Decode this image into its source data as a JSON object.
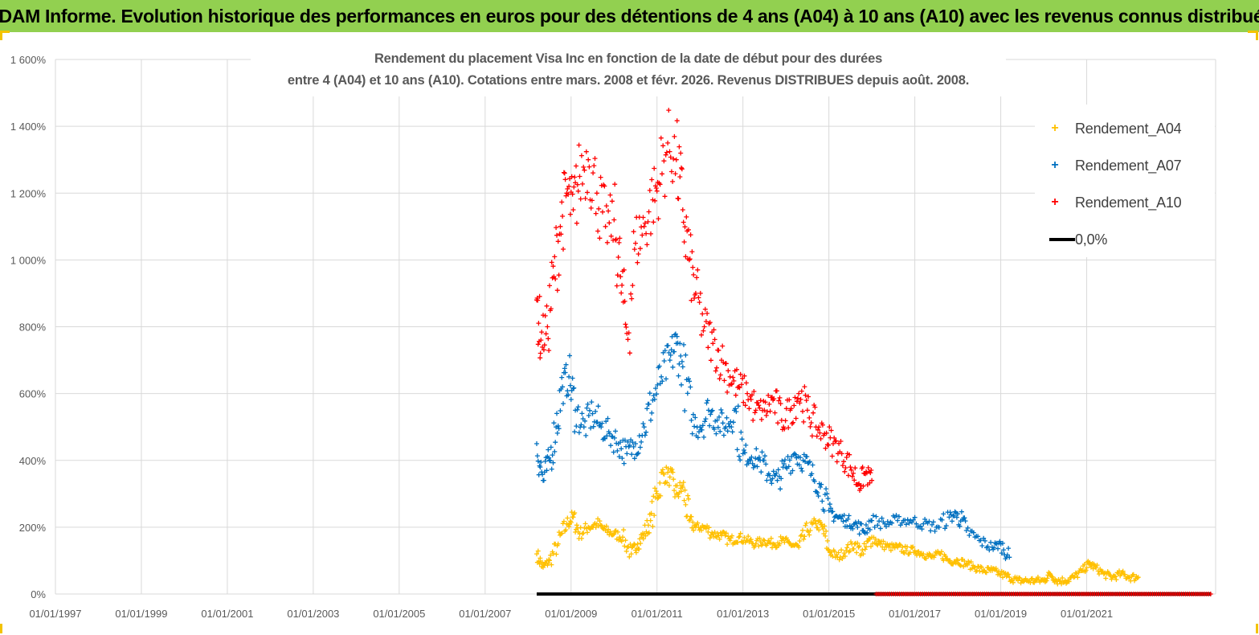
{
  "banner": {
    "title": "ADAM Informe. Evolution historique des performances en euros pour des détentions de 4 ans (A04) à 10 ans (A10) avec les revenus connus distribués"
  },
  "colors": {
    "banner_bg": "#92d050",
    "A04": "#ffc000",
    "A07": "#0070c0",
    "A10": "#ff0000",
    "zero": "#000000",
    "axis_text": "#595959",
    "grid": "#d9d9d9"
  },
  "chart_data": {
    "type": "scatter",
    "title_lines": [
      "Rendement du placement Visa Inc en fonction de la date de début pour des durées",
      "entre 4 (A04) et 10 ans (A10). Cotations entre mars. 2008 et févr. 2026. Revenus DISTRIBUES depuis août. 2008."
    ],
    "x_axis": {
      "type": "date",
      "range": [
        "1997-01-01",
        "2023-12-31"
      ],
      "tick_labels": [
        "01/01/1997",
        "01/01/1999",
        "01/01/2001",
        "01/01/2003",
        "01/01/2005",
        "01/01/2007",
        "01/01/2009",
        "01/01/2011",
        "01/01/2013",
        "01/01/2015",
        "01/01/2017",
        "01/01/2019",
        "01/01/2021"
      ],
      "tick_years": [
        1997,
        1999,
        2001,
        2003,
        2005,
        2007,
        2009,
        2011,
        2013,
        2015,
        2017,
        2019,
        2021
      ]
    },
    "y_axis": {
      "range": [
        0,
        16
      ],
      "unit": "ratio (1 = 100%)",
      "tick_labels": [
        "0%",
        "200%",
        "400%",
        "600%",
        "800%",
        "1 000%",
        "1 200%",
        "1 400%",
        "1 600%"
      ],
      "tick_values": [
        0,
        2,
        4,
        6,
        8,
        10,
        12,
        14,
        16
      ]
    },
    "grid": "vertical and horizontal major gridlines",
    "legend": {
      "position": "top-right",
      "entries": [
        "Rendement_A04",
        "Rendement_A07",
        "Rendement_A10",
        "0,0%"
      ]
    },
    "series": [
      {
        "name": "Rendement_A04",
        "marker": "+",
        "color": "#ffc000",
        "points": [
          [
            2008.2,
            1.2
          ],
          [
            2008.35,
            0.8
          ],
          [
            2008.5,
            1.0
          ],
          [
            2008.7,
            1.5
          ],
          [
            2008.9,
            2.1
          ],
          [
            2009.05,
            2.3
          ],
          [
            2009.2,
            1.8
          ],
          [
            2009.4,
            2.0
          ],
          [
            2009.6,
            2.1
          ],
          [
            2009.8,
            1.9
          ],
          [
            2010.0,
            1.8
          ],
          [
            2010.2,
            1.7
          ],
          [
            2010.4,
            1.2
          ],
          [
            2010.55,
            1.5
          ],
          [
            2010.7,
            1.8
          ],
          [
            2010.85,
            2.2
          ],
          [
            2011.0,
            3.0
          ],
          [
            2011.15,
            3.6
          ],
          [
            2011.3,
            3.5
          ],
          [
            2011.45,
            3.0
          ],
          [
            2011.6,
            3.2
          ],
          [
            2011.75,
            2.2
          ],
          [
            2011.9,
            2.0
          ],
          [
            2012.1,
            2.0
          ],
          [
            2012.3,
            1.8
          ],
          [
            2012.5,
            1.75
          ],
          [
            2012.7,
            1.6
          ],
          [
            2012.9,
            1.7
          ],
          [
            2013.1,
            1.6
          ],
          [
            2013.3,
            1.5
          ],
          [
            2013.5,
            1.6
          ],
          [
            2013.7,
            1.5
          ],
          [
            2013.9,
            1.6
          ],
          [
            2014.1,
            1.5
          ],
          [
            2014.3,
            1.4
          ],
          [
            2014.5,
            1.9
          ],
          [
            2014.7,
            2.1
          ],
          [
            2014.85,
            2.0
          ],
          [
            2015.0,
            1.3
          ],
          [
            2015.2,
            1.1
          ],
          [
            2015.4,
            1.3
          ],
          [
            2015.6,
            1.5
          ],
          [
            2015.8,
            1.2
          ],
          [
            2016.0,
            1.7
          ],
          [
            2016.2,
            1.5
          ],
          [
            2016.4,
            1.4
          ],
          [
            2016.6,
            1.4
          ],
          [
            2016.8,
            1.3
          ],
          [
            2017.0,
            1.3
          ],
          [
            2017.2,
            1.2
          ],
          [
            2017.4,
            1.1
          ],
          [
            2017.6,
            1.2
          ],
          [
            2017.8,
            1.0
          ],
          [
            2018.0,
            1.0
          ],
          [
            2018.2,
            0.9
          ],
          [
            2018.4,
            0.8
          ],
          [
            2018.6,
            0.7
          ],
          [
            2018.8,
            0.7
          ],
          [
            2019.0,
            0.6
          ],
          [
            2019.2,
            0.5
          ],
          [
            2019.4,
            0.4
          ],
          [
            2019.6,
            0.4
          ],
          [
            2019.8,
            0.4
          ],
          [
            2020.0,
            0.4
          ],
          [
            2020.15,
            0.6
          ],
          [
            2020.3,
            0.4
          ],
          [
            2020.5,
            0.4
          ],
          [
            2020.7,
            0.5
          ],
          [
            2020.9,
            0.7
          ],
          [
            2021.05,
            0.9
          ],
          [
            2021.2,
            0.8
          ],
          [
            2021.4,
            0.6
          ],
          [
            2021.6,
            0.5
          ],
          [
            2021.8,
            0.6
          ],
          [
            2022.0,
            0.5
          ],
          [
            2022.2,
            0.5
          ]
        ]
      },
      {
        "name": "Rendement_A07",
        "marker": "+",
        "color": "#0070c0",
        "points": [
          [
            2008.2,
            4.5
          ],
          [
            2008.35,
            3.4
          ],
          [
            2008.5,
            4.0
          ],
          [
            2008.65,
            5.0
          ],
          [
            2008.8,
            6.2
          ],
          [
            2008.95,
            6.5
          ],
          [
            2009.1,
            5.5
          ],
          [
            2009.3,
            5.0
          ],
          [
            2009.5,
            5.4
          ],
          [
            2009.7,
            5.0
          ],
          [
            2009.9,
            4.8
          ],
          [
            2010.1,
            4.5
          ],
          [
            2010.3,
            4.2
          ],
          [
            2010.5,
            4.5
          ],
          [
            2010.7,
            5.0
          ],
          [
            2010.9,
            5.8
          ],
          [
            2011.1,
            6.5
          ],
          [
            2011.3,
            7.0
          ],
          [
            2011.45,
            7.5
          ],
          [
            2011.6,
            6.8
          ],
          [
            2011.8,
            5.2
          ],
          [
            2012.0,
            5.0
          ],
          [
            2012.2,
            5.5
          ],
          [
            2012.4,
            5.2
          ],
          [
            2012.6,
            5.0
          ],
          [
            2012.8,
            5.5
          ],
          [
            2013.0,
            4.2
          ],
          [
            2013.2,
            4.1
          ],
          [
            2013.4,
            4.0
          ],
          [
            2013.6,
            3.6
          ],
          [
            2013.8,
            3.4
          ],
          [
            2014.0,
            3.8
          ],
          [
            2014.2,
            4.2
          ],
          [
            2014.4,
            4.0
          ],
          [
            2014.6,
            3.6
          ],
          [
            2014.8,
            3.2
          ],
          [
            2015.0,
            2.5
          ],
          [
            2015.2,
            2.3
          ],
          [
            2015.4,
            2.2
          ],
          [
            2015.6,
            2.1
          ],
          [
            2015.8,
            1.9
          ],
          [
            2016.0,
            2.2
          ],
          [
            2016.3,
            2.1
          ],
          [
            2016.6,
            2.2
          ],
          [
            2016.9,
            2.2
          ],
          [
            2017.2,
            2.1
          ],
          [
            2017.5,
            2.0
          ],
          [
            2017.8,
            2.3
          ],
          [
            2018.0,
            2.4
          ],
          [
            2018.2,
            1.9
          ],
          [
            2018.5,
            1.6
          ],
          [
            2018.8,
            1.4
          ],
          [
            2019.0,
            1.5
          ],
          [
            2019.2,
            1.1
          ]
        ]
      },
      {
        "name": "Rendement_A10",
        "marker": "+",
        "color": "#ff0000",
        "points": [
          [
            2008.2,
            8.8
          ],
          [
            2008.3,
            7.6
          ],
          [
            2008.45,
            8.0
          ],
          [
            2008.6,
            9.5
          ],
          [
            2008.75,
            11.0
          ],
          [
            2008.9,
            12.0
          ],
          [
            2009.05,
            11.5
          ],
          [
            2009.2,
            12.5
          ],
          [
            2009.4,
            13.0
          ],
          [
            2009.6,
            12.0
          ],
          [
            2009.8,
            11.0
          ],
          [
            2010.0,
            11.2
          ],
          [
            2010.15,
            9.5
          ],
          [
            2010.3,
            7.8
          ],
          [
            2010.5,
            10.5
          ],
          [
            2010.7,
            11.0
          ],
          [
            2010.9,
            11.8
          ],
          [
            2011.05,
            12.3
          ],
          [
            2011.25,
            13.5
          ],
          [
            2011.45,
            13.0
          ],
          [
            2011.6,
            11.5
          ],
          [
            2011.75,
            10.0
          ],
          [
            2011.9,
            9.0
          ],
          [
            2012.1,
            8.0
          ],
          [
            2012.3,
            7.5
          ],
          [
            2012.5,
            7.0
          ],
          [
            2012.7,
            6.5
          ],
          [
            2012.9,
            6.2
          ],
          [
            2013.1,
            6.0
          ],
          [
            2013.3,
            5.5
          ],
          [
            2013.5,
            5.5
          ],
          [
            2013.7,
            5.8
          ],
          [
            2013.9,
            5.2
          ],
          [
            2014.1,
            5.5
          ],
          [
            2014.3,
            6.0
          ],
          [
            2014.5,
            5.5
          ],
          [
            2014.7,
            5.0
          ],
          [
            2014.9,
            4.8
          ],
          [
            2015.1,
            4.5
          ],
          [
            2015.3,
            4.2
          ],
          [
            2015.5,
            3.8
          ],
          [
            2015.7,
            3.3
          ],
          [
            2015.85,
            3.6
          ],
          [
            2016.0,
            3.4
          ]
        ]
      },
      {
        "name": "0,0%",
        "marker": "line",
        "color": "#000000",
        "from": 2008.2,
        "to": 2023.9,
        "value": 0
      }
    ],
    "zero_markers_A10": {
      "from": 2016.1,
      "to": 2023.9,
      "value": 0
    }
  }
}
